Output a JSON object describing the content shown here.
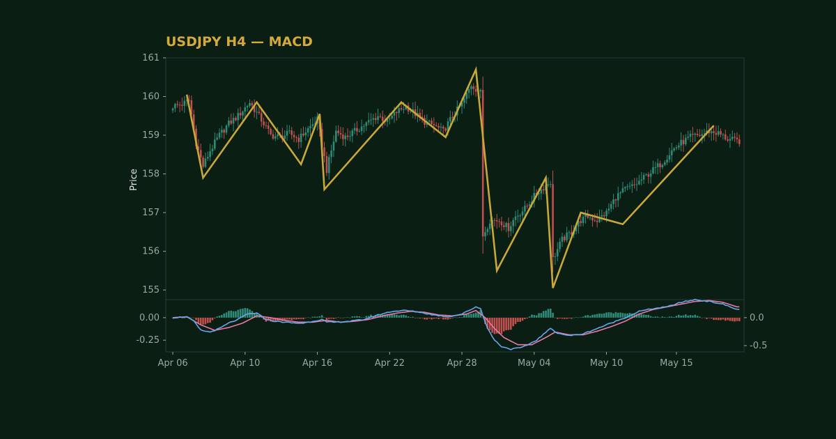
{
  "chart_data": {
    "type": "candlestick",
    "title": "USDJPY H4 — MACD",
    "ylabel": "Price",
    "colors": {
      "background": "#0a1e14",
      "up": "#2e8b78",
      "down": "#c0504d",
      "zigzag": "#c9a83a",
      "macd": "#6aa7e8",
      "signal": "#e87aa8",
      "hist_pos": "#2e8b78",
      "hist_neg": "#c0504d",
      "axis": "#2c3a34",
      "tick_text": "#9aa8a0"
    },
    "price_panel": {
      "ylim": [
        154.75,
        161.0
      ],
      "yticks": [
        155,
        156,
        157,
        158,
        159,
        160,
        161
      ]
    },
    "macd_panel": {
      "left_ticks": [
        "0.00",
        "-0.25"
      ],
      "right_ticks": [
        "0.0",
        "-0.5"
      ],
      "ylim": [
        -0.38,
        0.2
      ]
    },
    "x_axis": {
      "index_range": [
        -3,
        245
      ],
      "ticks": [
        {
          "label": "Apr 06",
          "index": 0
        },
        {
          "label": "Apr 10",
          "index": 31
        },
        {
          "label": "Apr 16",
          "index": 62
        },
        {
          "label": "Apr 22",
          "index": 93
        },
        {
          "label": "Apr 28",
          "index": 124
        },
        {
          "label": "May 04",
          "index": 155
        },
        {
          "label": "May 10",
          "index": 186
        },
        {
          "label": "May 15",
          "index": 216
        }
      ]
    },
    "price_anchors": [
      [
        0,
        159.75
      ],
      [
        4,
        159.8
      ],
      [
        7,
        159.9
      ],
      [
        10,
        158.8
      ],
      [
        13,
        158.2
      ],
      [
        16,
        158.6
      ],
      [
        20,
        159.0
      ],
      [
        24,
        159.3
      ],
      [
        28,
        159.5
      ],
      [
        33,
        159.85
      ],
      [
        38,
        159.4
      ],
      [
        42,
        159.0
      ],
      [
        46,
        158.95
      ],
      [
        50,
        159.05
      ],
      [
        54,
        158.9
      ],
      [
        57,
        159.1
      ],
      [
        62,
        159.4
      ],
      [
        66,
        158.1
      ],
      [
        70,
        159.1
      ],
      [
        74,
        158.95
      ],
      [
        78,
        159.1
      ],
      [
        83,
        159.3
      ],
      [
        88,
        159.5
      ],
      [
        92,
        159.35
      ],
      [
        96,
        159.6
      ],
      [
        100,
        159.75
      ],
      [
        104,
        159.55
      ],
      [
        108,
        159.35
      ],
      [
        112,
        159.25
      ],
      [
        116,
        159.1
      ],
      [
        120,
        159.5
      ],
      [
        124,
        159.8
      ],
      [
        128,
        160.3
      ],
      [
        132,
        160.1
      ],
      [
        133,
        156.4
      ],
      [
        136,
        156.8
      ],
      [
        140,
        156.8
      ],
      [
        144,
        156.6
      ],
      [
        147,
        156.9
      ],
      [
        151,
        157.1
      ],
      [
        156,
        157.5
      ],
      [
        162,
        157.8
      ],
      [
        163,
        155.8
      ],
      [
        167,
        156.3
      ],
      [
        171,
        156.5
      ],
      [
        175,
        156.8
      ],
      [
        178,
        156.9
      ],
      [
        182,
        156.8
      ],
      [
        186,
        157.0
      ],
      [
        190,
        157.4
      ],
      [
        194,
        157.6
      ],
      [
        198,
        157.7
      ],
      [
        202,
        157.9
      ],
      [
        206,
        158.1
      ],
      [
        210,
        158.3
      ],
      [
        214,
        158.6
      ],
      [
        218,
        158.8
      ],
      [
        222,
        158.95
      ],
      [
        226,
        159.0
      ],
      [
        230,
        159.1
      ],
      [
        234,
        159.05
      ],
      [
        238,
        158.9
      ],
      [
        242,
        158.85
      ]
    ],
    "zigzag": [
      [
        6,
        160.05
      ],
      [
        13,
        157.9
      ],
      [
        36,
        159.85
      ],
      [
        55,
        158.25
      ],
      [
        63,
        159.55
      ],
      [
        65,
        157.6
      ],
      [
        98,
        159.85
      ],
      [
        117,
        158.95
      ],
      [
        130,
        160.7
      ],
      [
        139,
        155.5
      ],
      [
        160,
        157.9
      ],
      [
        163,
        155.05
      ],
      [
        175,
        157.0
      ],
      [
        193,
        156.7
      ],
      [
        232,
        159.25
      ]
    ],
    "macd_anchors": [
      [
        0,
        0.0
      ],
      [
        6,
        0.01
      ],
      [
        9,
        -0.04
      ],
      [
        12,
        -0.14
      ],
      [
        16,
        -0.16
      ],
      [
        20,
        -0.12
      ],
      [
        24,
        -0.06
      ],
      [
        28,
        -0.02
      ],
      [
        32,
        0.04
      ],
      [
        36,
        0.05
      ],
      [
        40,
        -0.02
      ],
      [
        44,
        -0.04
      ],
      [
        48,
        -0.05
      ],
      [
        52,
        -0.06
      ],
      [
        56,
        -0.06
      ],
      [
        60,
        -0.04
      ],
      [
        64,
        -0.02
      ],
      [
        66,
        -0.05
      ],
      [
        70,
        -0.05
      ],
      [
        76,
        -0.04
      ],
      [
        82,
        -0.02
      ],
      [
        88,
        0.03
      ],
      [
        94,
        0.07
      ],
      [
        100,
        0.08
      ],
      [
        106,
        0.06
      ],
      [
        112,
        0.03
      ],
      [
        118,
        0.01
      ],
      [
        124,
        0.04
      ],
      [
        130,
        0.12
      ],
      [
        132,
        0.1
      ],
      [
        135,
        -0.12
      ],
      [
        138,
        -0.25
      ],
      [
        141,
        -0.32
      ],
      [
        145,
        -0.35
      ],
      [
        150,
        -0.33
      ],
      [
        156,
        -0.25
      ],
      [
        162,
        -0.12
      ],
      [
        165,
        -0.17
      ],
      [
        170,
        -0.2
      ],
      [
        176,
        -0.18
      ],
      [
        182,
        -0.12
      ],
      [
        188,
        -0.06
      ],
      [
        194,
        0.0
      ],
      [
        200,
        0.07
      ],
      [
        206,
        0.1
      ],
      [
        212,
        0.12
      ],
      [
        218,
        0.17
      ],
      [
        224,
        0.2
      ],
      [
        230,
        0.18
      ],
      [
        236,
        0.15
      ],
      [
        242,
        0.09
      ]
    ],
    "signal_anchors": [
      [
        0,
        0.0
      ],
      [
        6,
        0.01
      ],
      [
        12,
        -0.08
      ],
      [
        18,
        -0.14
      ],
      [
        24,
        -0.11
      ],
      [
        30,
        -0.06
      ],
      [
        36,
        0.02
      ],
      [
        42,
        0.0
      ],
      [
        48,
        -0.03
      ],
      [
        54,
        -0.05
      ],
      [
        60,
        -0.05
      ],
      [
        66,
        -0.03
      ],
      [
        72,
        -0.05
      ],
      [
        78,
        -0.04
      ],
      [
        84,
        -0.02
      ],
      [
        90,
        0.02
      ],
      [
        96,
        0.05
      ],
      [
        102,
        0.07
      ],
      [
        108,
        0.06
      ],
      [
        114,
        0.03
      ],
      [
        120,
        0.02
      ],
      [
        126,
        0.04
      ],
      [
        130,
        0.08
      ],
      [
        134,
        0.0
      ],
      [
        138,
        -0.12
      ],
      [
        142,
        -0.22
      ],
      [
        148,
        -0.3
      ],
      [
        154,
        -0.3
      ],
      [
        160,
        -0.22
      ],
      [
        164,
        -0.16
      ],
      [
        170,
        -0.19
      ],
      [
        176,
        -0.19
      ],
      [
        182,
        -0.15
      ],
      [
        188,
        -0.1
      ],
      [
        194,
        -0.04
      ],
      [
        200,
        0.04
      ],
      [
        206,
        0.09
      ],
      [
        212,
        0.12
      ],
      [
        218,
        0.15
      ],
      [
        224,
        0.18
      ],
      [
        230,
        0.19
      ],
      [
        236,
        0.17
      ],
      [
        242,
        0.12
      ]
    ]
  }
}
